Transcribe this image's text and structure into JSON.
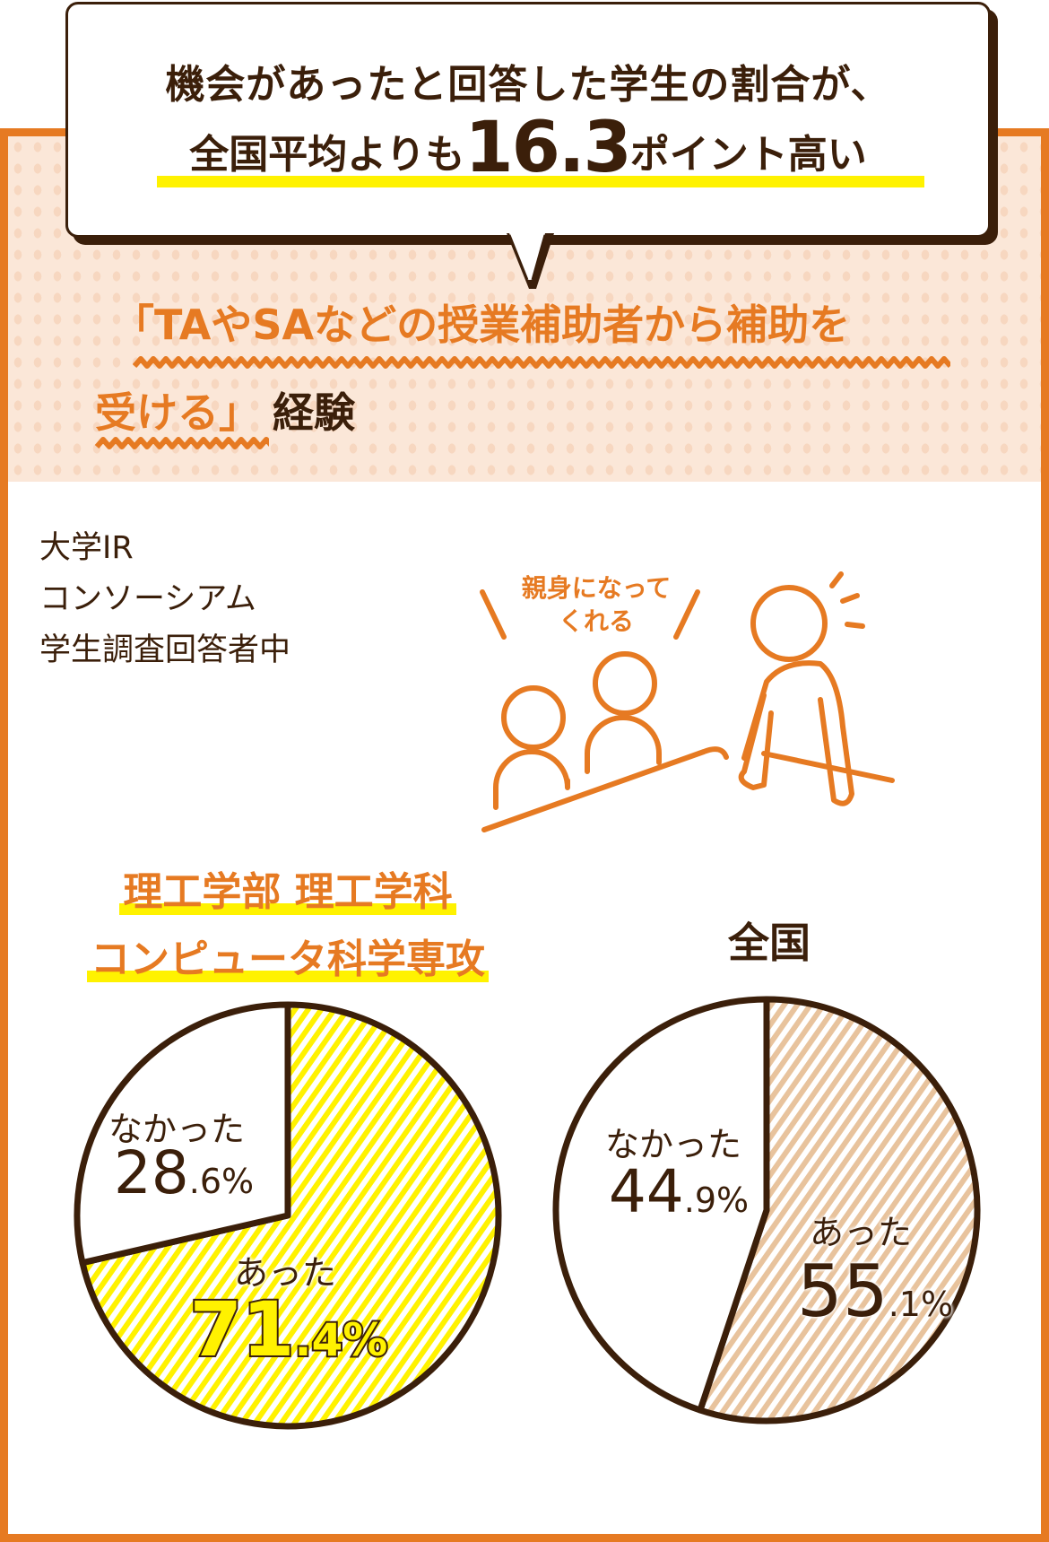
{
  "headline": {
    "line1": "機会があったと回答した学生の割合が、",
    "line2_before": "全国平均よりも",
    "line2_number": "16.3",
    "line2_after": "ポイント高い"
  },
  "topic": {
    "line1": "「TAやSAなどの授業補助者から補助を",
    "line2_orange": "受ける」",
    "line2_dark": "経験"
  },
  "source": [
    "大学IR",
    "コンソーシアム",
    "学生調査回答者中"
  ],
  "illustration": {
    "caption_line1": "親身になって",
    "caption_line2": "くれる"
  },
  "colors": {
    "orange": "#e67a22",
    "dark": "#3b1f0a",
    "yellow": "#fff200",
    "tan": "#e8c39d"
  },
  "chart_data": [
    {
      "type": "pie",
      "title": [
        "理工学部 理工学科",
        "コンピュータ科学専攻"
      ],
      "slices": [
        {
          "label": "あった",
          "value": 71.4,
          "int": "71",
          "dec": ".4%"
        },
        {
          "label": "なかった",
          "value": 28.6,
          "int": "28",
          "dec": ".6%"
        }
      ]
    },
    {
      "type": "pie",
      "title": [
        "全国"
      ],
      "slices": [
        {
          "label": "あった",
          "value": 55.1,
          "int": "55",
          "dec": ".1%"
        },
        {
          "label": "なかった",
          "value": 44.9,
          "int": "44",
          "dec": ".9%"
        }
      ]
    }
  ]
}
